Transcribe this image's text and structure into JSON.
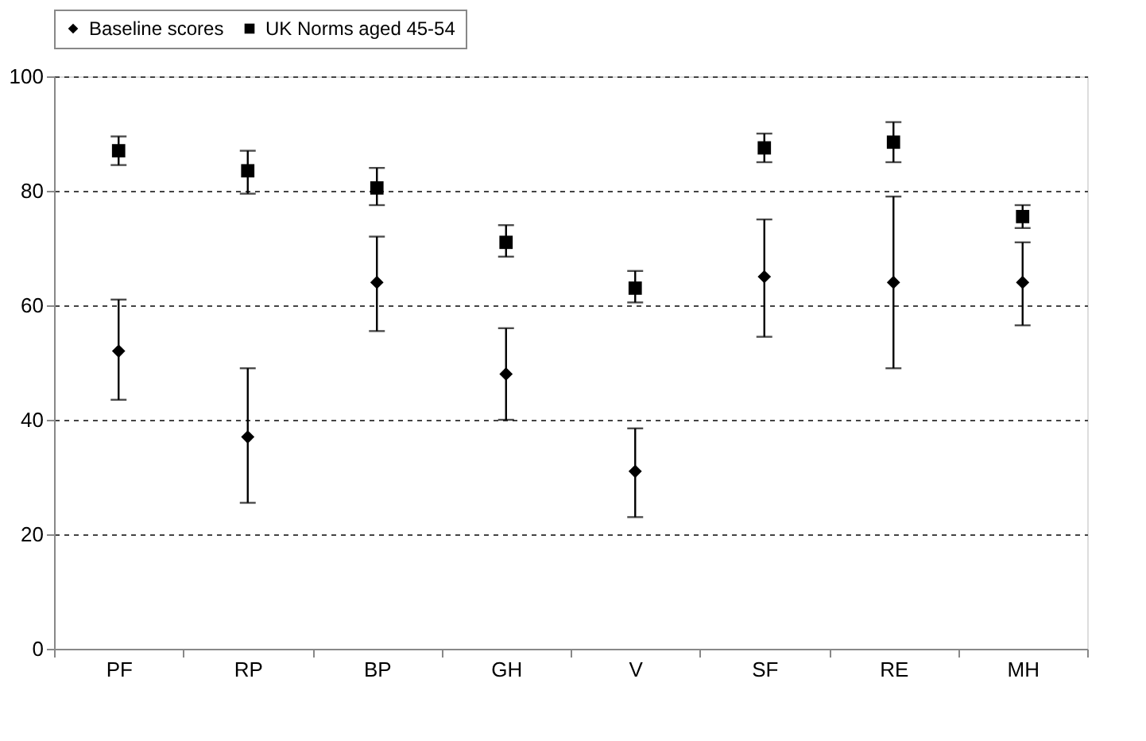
{
  "chart_data": {
    "type": "scatter",
    "categories": [
      "PF",
      "RP",
      "BP",
      "GH",
      "V",
      "SF",
      "RE",
      "MH"
    ],
    "series": [
      {
        "name": "Baseline scores",
        "color": "#000000",
        "marker": "diamond",
        "values": [
          52,
          37,
          64,
          48,
          31,
          65,
          64,
          64
        ],
        "errors": [
          [
            43.5,
            61
          ],
          [
            25.5,
            49
          ],
          [
            55.5,
            72
          ],
          [
            40,
            56
          ],
          [
            23,
            38.5
          ],
          [
            54.5,
            75
          ],
          [
            49,
            79
          ],
          [
            56.5,
            71
          ]
        ]
      },
      {
        "name": "UK Norms aged 45-54",
        "color": "#000000",
        "marker": "square",
        "values": [
          87,
          83.5,
          80.5,
          71,
          63,
          87.5,
          88.5,
          75.5
        ],
        "errors": [
          [
            84.5,
            89.5
          ],
          [
            79.5,
            87
          ],
          [
            77.5,
            84
          ],
          [
            68.5,
            74
          ],
          [
            60.5,
            66
          ],
          [
            85,
            90
          ],
          [
            85,
            92
          ],
          [
            73.5,
            77.5
          ]
        ]
      }
    ],
    "ylim": [
      0,
      100
    ],
    "yticks": [
      0,
      20,
      40,
      60,
      80,
      100
    ],
    "grid": "y",
    "legend": "top"
  }
}
